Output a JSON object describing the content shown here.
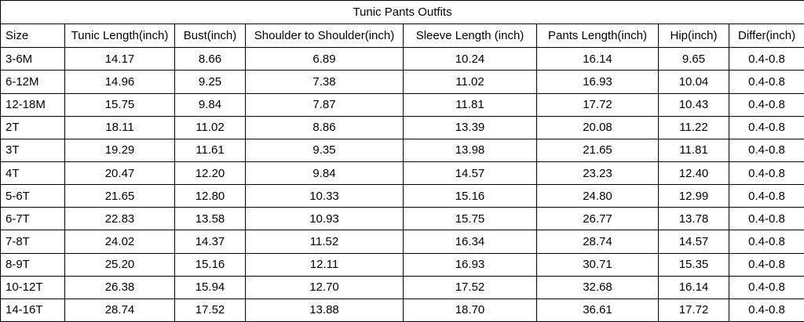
{
  "table": {
    "title": "Tunic Pants Outfits",
    "header": [
      "Size",
      "Tunic Length(inch)",
      "Bust(inch)",
      "Shoulder to Shoulder(inch)",
      "Sleeve Length (inch)",
      "Pants Length(inch)",
      "Hip(inch)",
      "Differ(inch)"
    ],
    "rows": [
      [
        "3-6M",
        "14.17",
        "8.66",
        "6.89",
        "10.24",
        "16.14",
        "9.65",
        "0.4-0.8"
      ],
      [
        "6-12M",
        "14.96",
        "9.25",
        "7.38",
        "11.02",
        "16.93",
        "10.04",
        "0.4-0.8"
      ],
      [
        "12-18M",
        "15.75",
        "9.84",
        "7.87",
        "11.81",
        "17.72",
        "10.43",
        "0.4-0.8"
      ],
      [
        "2T",
        "18.11",
        "11.02",
        "8.86",
        "13.39",
        "20.08",
        "11.22",
        "0.4-0.8"
      ],
      [
        "3T",
        "19.29",
        "11.61",
        "9.35",
        "13.98",
        "21.65",
        "11.81",
        "0.4-0.8"
      ],
      [
        "4T",
        "20.47",
        "12.20",
        "9.84",
        "14.57",
        "23.23",
        "12.40",
        "0.4-0.8"
      ],
      [
        "5-6T",
        "21.65",
        "12.80",
        "10.33",
        "15.16",
        "24.80",
        "12.99",
        "0.4-0.8"
      ],
      [
        "6-7T",
        "22.83",
        "13.58",
        "10.93",
        "15.75",
        "26.77",
        "13.78",
        "0.4-0.8"
      ],
      [
        "7-8T",
        "24.02",
        "14.37",
        "11.52",
        "16.34",
        "28.74",
        "14.57",
        "0.4-0.8"
      ],
      [
        "8-9T",
        "25.20",
        "15.16",
        "12.11",
        "16.93",
        "30.71",
        "15.35",
        "0.4-0.8"
      ],
      [
        "10-12T",
        "26.38",
        "15.94",
        "12.70",
        "17.52",
        "32.68",
        "16.14",
        "0.4-0.8"
      ],
      [
        "14-16T",
        "28.74",
        "17.52",
        "13.88",
        "18.70",
        "36.61",
        "17.72",
        "0.4-0.8"
      ]
    ]
  }
}
